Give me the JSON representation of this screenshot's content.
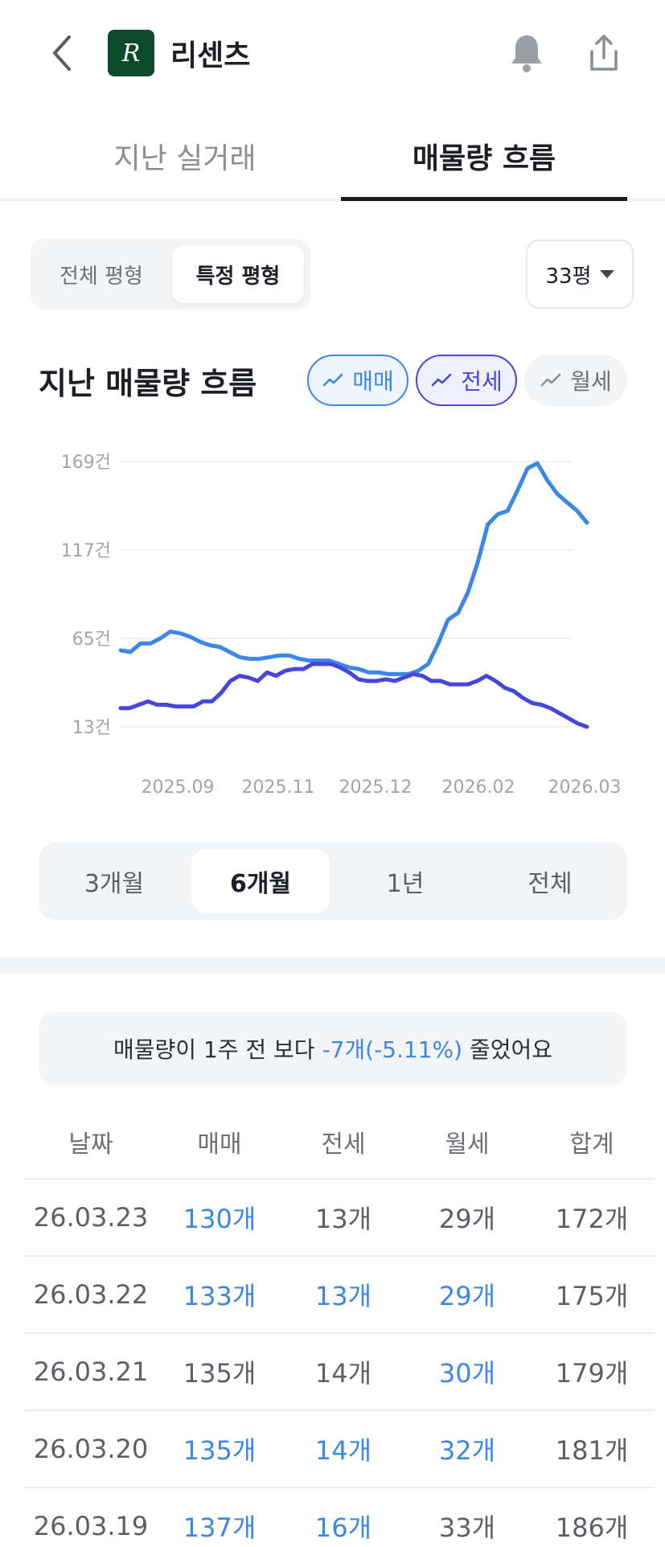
{
  "header": {
    "title": "리센츠",
    "logo_letter": "R",
    "icons": [
      "back-arrow-icon",
      "bell-icon",
      "share-icon"
    ]
  },
  "tabs": [
    {
      "label": "지난 실거래",
      "selected": false
    },
    {
      "label": "매물량 흐름",
      "selected": true
    }
  ],
  "segment": {
    "all_label": "전체 평형",
    "specific_label": "특정 평형",
    "selected": "specific"
  },
  "size_select": {
    "value": "33평"
  },
  "chart_section": {
    "title": "지난 매물량 흐름",
    "pills": [
      {
        "label": "매매",
        "active": true,
        "color": "#3c86e6"
      },
      {
        "label": "전세",
        "active": true,
        "color": "#4646d8"
      },
      {
        "label": "월세",
        "active": false,
        "color": "#8a8d94"
      }
    ]
  },
  "chart_data": {
    "type": "line",
    "ylabels": [
      "169건",
      "117건",
      "65건",
      "13건"
    ],
    "yticks": [
      169,
      117,
      65,
      13
    ],
    "ylim": [
      13,
      169
    ],
    "xlabels": [
      "2025.09",
      "2025.11",
      "2025.12",
      "2026.02",
      "2026.03"
    ],
    "grid": true,
    "series": [
      {
        "name": "매매",
        "color": "#3c86e6",
        "values": [
          58,
          57,
          62,
          62,
          65,
          69,
          68,
          66,
          63,
          61,
          60,
          57,
          54,
          53,
          53,
          54,
          55,
          55,
          53,
          52,
          52,
          52,
          50,
          48,
          47,
          45,
          45,
          44,
          44,
          44,
          46,
          50,
          62,
          76,
          80,
          92,
          110,
          132,
          138,
          140,
          152,
          165,
          168,
          158,
          150,
          145,
          140,
          133
        ]
      },
      {
        "name": "전세",
        "color": "#4646d8",
        "values": [
          24,
          24,
          26,
          28,
          26,
          26,
          25,
          25,
          25,
          28,
          28,
          33,
          40,
          43,
          42,
          40,
          45,
          43,
          46,
          47,
          47,
          50,
          50,
          50,
          48,
          45,
          41,
          40,
          40,
          41,
          40,
          42,
          44,
          43,
          40,
          40,
          38,
          38,
          38,
          40,
          43,
          40,
          36,
          34,
          30,
          27,
          26,
          24,
          21,
          18,
          15,
          13
        ]
      }
    ]
  },
  "periods": [
    {
      "label": "3개월",
      "selected": false
    },
    {
      "label": "6개월",
      "selected": true
    },
    {
      "label": "1년",
      "selected": false
    },
    {
      "label": "전체",
      "selected": false
    }
  ],
  "notice": {
    "prefix": "매물량이 1주 전 보다 ",
    "change": "-7개(-5.11%)",
    "suffix": " 줄었어요"
  },
  "table": {
    "headers": [
      "날짜",
      "매매",
      "전세",
      "월세",
      "합계"
    ],
    "rows": [
      {
        "date": "26.03.23",
        "sale": "130개",
        "jeonse": "13개",
        "monthly": "29개",
        "total": "172개",
        "sale_hl": true,
        "jeonse_hl": false,
        "monthly_hl": false
      },
      {
        "date": "26.03.22",
        "sale": "133개",
        "jeonse": "13개",
        "monthly": "29개",
        "total": "175개",
        "sale_hl": true,
        "jeonse_hl": true,
        "monthly_hl": true
      },
      {
        "date": "26.03.21",
        "sale": "135개",
        "jeonse": "14개",
        "monthly": "30개",
        "total": "179개",
        "sale_hl": false,
        "jeonse_hl": false,
        "monthly_hl": true
      },
      {
        "date": "26.03.20",
        "sale": "135개",
        "jeonse": "14개",
        "monthly": "32개",
        "total": "181개",
        "sale_hl": true,
        "jeonse_hl": true,
        "monthly_hl": true
      },
      {
        "date": "26.03.19",
        "sale": "137개",
        "jeonse": "16개",
        "monthly": "33개",
        "total": "186개",
        "sale_hl": true,
        "jeonse_hl": true,
        "monthly_hl": false
      }
    ]
  }
}
